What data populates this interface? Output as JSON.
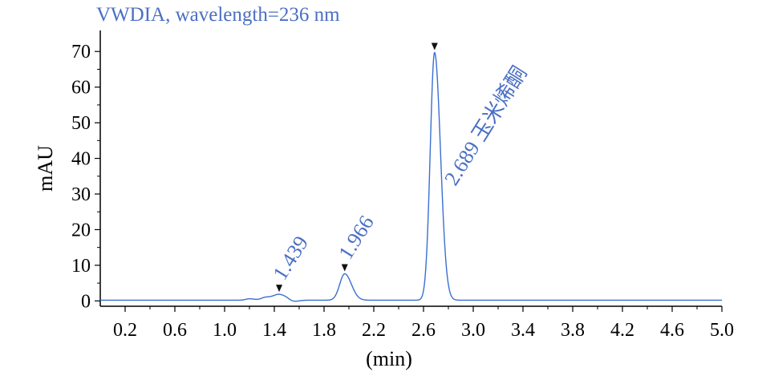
{
  "chart_data": {
    "type": "line",
    "title": "VWDIA, wavelength=236 nm",
    "xlabel": "(min)",
    "ylabel": "mAU",
    "xlim": [
      0,
      5.0
    ],
    "ylim": [
      -1.5,
      75
    ],
    "x_ticks": [
      "0.2",
      "0.6",
      "1.0",
      "1.4",
      "1.8",
      "2.2",
      "2.6",
      "3.0",
      "3.4",
      "3.8",
      "4.2",
      "4.6",
      "5.0"
    ],
    "y_ticks": [
      "0",
      "10",
      "20",
      "30",
      "40",
      "50",
      "60",
      "70"
    ],
    "grid": false,
    "line_color": "#3a6fd0",
    "text_color": "#4a6fc4",
    "baseline": 0.2,
    "peaks": [
      {
        "time": 1.439,
        "label": "1.439",
        "height": 1.6,
        "width": 0.045
      },
      {
        "time": 1.966,
        "label": "1.966",
        "height": 7.4,
        "width": 0.04
      },
      {
        "time": 2.689,
        "label": "2.689 玉米烯酮",
        "height": 69.5,
        "width": 0.035
      }
    ],
    "minor_features": [
      {
        "time": 1.2,
        "height": 0.4,
        "width": 0.03
      },
      {
        "time": 1.33,
        "height": 0.8,
        "width": 0.035
      },
      {
        "time": 1.55,
        "height": -0.5,
        "width": 0.03
      }
    ]
  }
}
